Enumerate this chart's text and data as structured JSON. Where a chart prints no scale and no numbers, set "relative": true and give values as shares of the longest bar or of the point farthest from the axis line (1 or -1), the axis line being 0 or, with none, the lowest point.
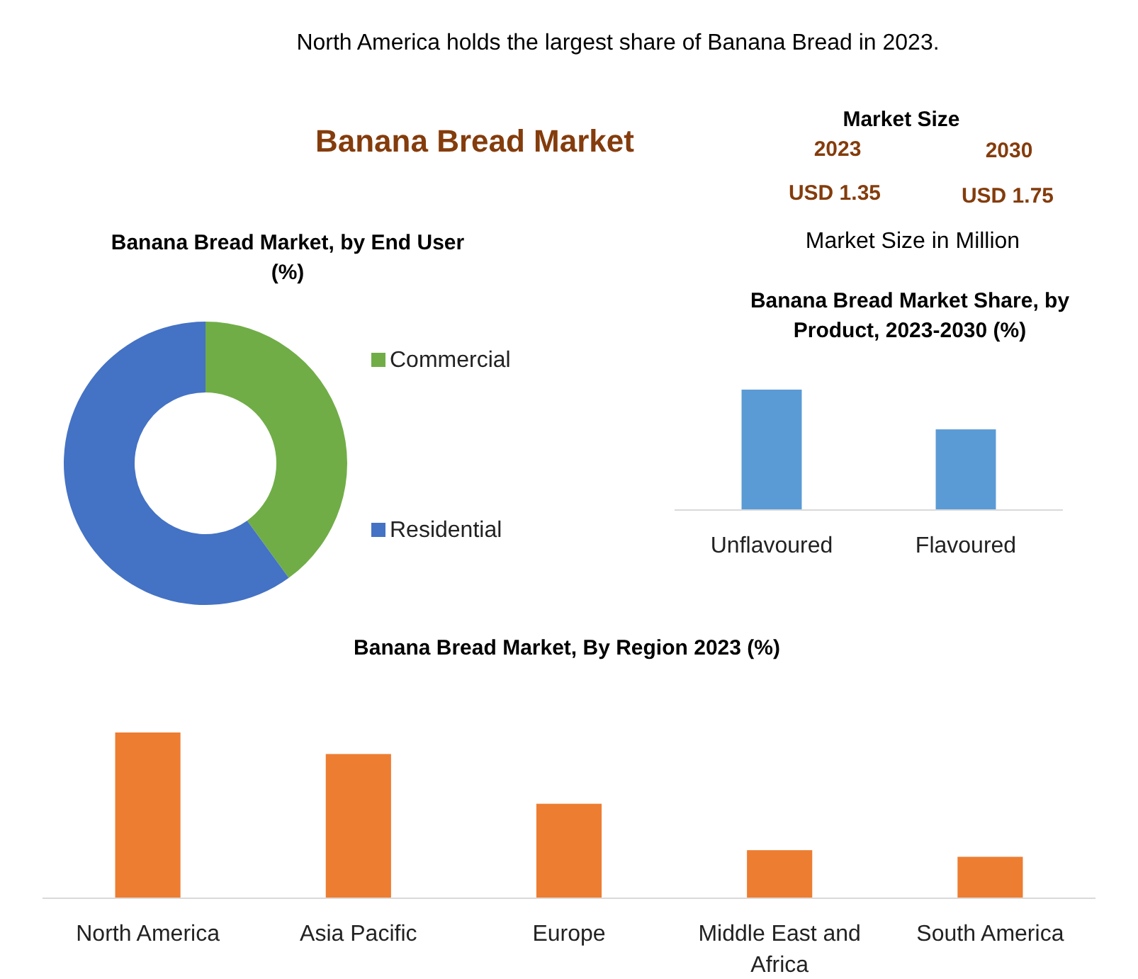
{
  "chart_data": [
    {
      "type": "other",
      "title": "Banana Bread Market",
      "subtitle": "North America holds the largest share of Banana Bread in 2023.",
      "annotations": [
        "Market Size",
        "2023",
        "2030",
        "USD 1.35",
        "USD 1.75",
        "Market Size in Million"
      ]
    },
    {
      "type": "donut",
      "title": "Banana Bread Market, by End User (%)",
      "categories": [
        "Commercial",
        "Residential"
      ],
      "values": [
        40,
        60
      ],
      "colors": [
        "#70ad47",
        "#4472c4"
      ],
      "legend": "right"
    },
    {
      "type": "bar",
      "title": "Banana Bread Market Share, by Product, 2023-2030 (%)",
      "categories": [
        "Unflavoured",
        "Flavoured"
      ],
      "values": [
        1,
        0.67
      ],
      "color": "#5b9bd5",
      "relative": true
    },
    {
      "type": "bar",
      "title": "Banana Bread Market, By Region 2023 (%)",
      "categories": [
        "North America",
        "Asia Pacific",
        "Europe",
        "Middle East and Africa",
        "South America"
      ],
      "values": [
        1,
        0.87,
        0.57,
        0.29,
        0.25
      ],
      "color": "#ed7d31",
      "relative": true
    }
  ]
}
